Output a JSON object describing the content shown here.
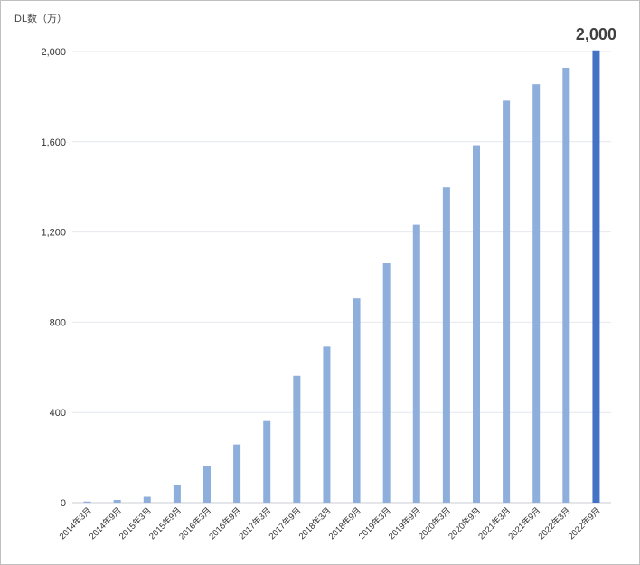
{
  "chart_data": {
    "type": "bar",
    "ylabel": "DL数（万）",
    "ylim": [
      0,
      2000
    ],
    "yticks": [
      0,
      400,
      800,
      1200,
      1600,
      2000
    ],
    "ytick_labels": [
      "0",
      "400",
      "800",
      "1,200",
      "1,600",
      "2,000"
    ],
    "categories": [
      "2014年3月",
      "2014年9月",
      "2015年3月",
      "2015年9月",
      "2016年3月",
      "2016年9月",
      "2017年3月",
      "2017年9月",
      "2018年3月",
      "2018年9月",
      "2019年3月",
      "2019年9月",
      "2020年3月",
      "2020年9月",
      "2021年3月",
      "2021年9月",
      "2022年3月",
      "2022年9月"
    ],
    "values": [
      5,
      12,
      26,
      77,
      164,
      258,
      362,
      562,
      692,
      905,
      1062,
      1232,
      1398,
      1585,
      1782,
      1855,
      1928,
      2005
    ],
    "highlight_index": 17,
    "annotation": "2,000",
    "grid": true,
    "colors": {
      "bar": "#8eaedb",
      "highlight": "#4472c4",
      "grid": "#e4e8ee"
    }
  }
}
